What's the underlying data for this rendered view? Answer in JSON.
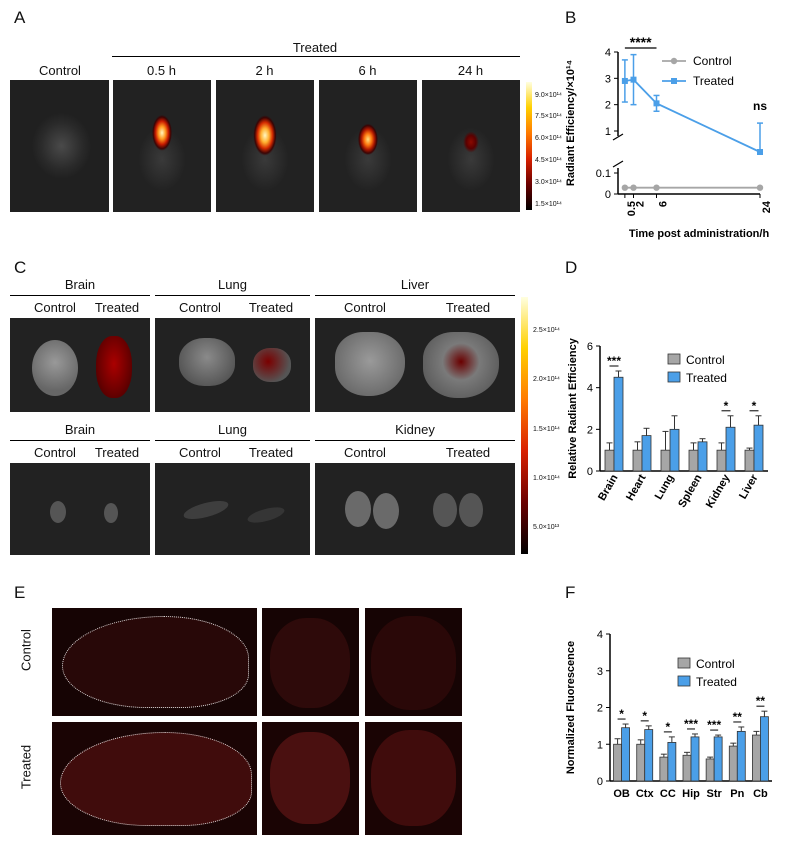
{
  "panels": {
    "A": "A",
    "B": "B",
    "C": "C",
    "D": "D",
    "E": "E",
    "F": "F"
  },
  "panelA": {
    "control_label": "Control",
    "treated_label": "Treated",
    "timepoints": [
      "0.5 h",
      "2 h",
      "6 h",
      "24 h"
    ],
    "colorbar_ticks": [
      "9.0×10¹⁴",
      "7.5×10¹⁴",
      "6.0×10¹⁴",
      "4.5×10¹⁴",
      "3.0×10¹⁴",
      "1.5×10¹⁴"
    ]
  },
  "panelC": {
    "top_groups": [
      "Brain",
      "Lung",
      "Liver"
    ],
    "bottom_groups": [
      "Brain",
      "Lung",
      "Kidney"
    ],
    "control_label": "Control",
    "treated_label": "Treated",
    "colorbar_ticks": [
      "2.5×10¹⁴",
      "2.0×10¹⁴",
      "1.5×10¹⁴",
      "1.0×10¹⁴",
      "5.0×10¹³"
    ]
  },
  "panelE": {
    "row_labels": [
      "Control",
      "Treated"
    ]
  },
  "chart_data": [
    {
      "panel": "B",
      "type": "line",
      "ylabel": "Radiant Efficiency/×10¹⁴",
      "xlabel": "Time post administration/h",
      "x": [
        0.5,
        2,
        6,
        24
      ],
      "xticks": [
        "0.5",
        "2",
        "6",
        "24"
      ],
      "yticks_upper": [
        "1",
        "2",
        "3",
        "4"
      ],
      "yticks_lower": [
        "0",
        "0.1"
      ],
      "y_axis_break": true,
      "series": [
        {
          "name": "Control",
          "color": "#a6a6a6",
          "values": [
            0.03,
            0.03,
            0.03,
            0.03
          ],
          "errors": [
            0.005,
            0.005,
            0.005,
            0.005
          ]
        },
        {
          "name": "Treated",
          "color": "#4b9fe8",
          "values": [
            2.9,
            2.95,
            2.05,
            0.95
          ],
          "errors": [
            0.8,
            0.95,
            0.3,
            0.35
          ]
        }
      ],
      "annotations": [
        {
          "text": "****"
        },
        {
          "text": "ns"
        }
      ],
      "legend": "top-right"
    },
    {
      "panel": "D",
      "type": "bar",
      "ylabel": "Relative Radiant Efficiency",
      "categories": [
        "Brain",
        "Heart",
        "Lung",
        "Spleen",
        "Kidney",
        "Liver"
      ],
      "ylim": [
        0,
        6
      ],
      "yticks": [
        "0",
        "2",
        "4",
        "6"
      ],
      "series": [
        {
          "name": "Control",
          "color": "#a6a6a6",
          "values": [
            1.0,
            1.0,
            1.0,
            1.0,
            1.0,
            1.0
          ],
          "errors": [
            0.35,
            0.4,
            0.9,
            0.35,
            0.35,
            0.1
          ]
        },
        {
          "name": "Treated",
          "color": "#4b9fe8",
          "values": [
            4.5,
            1.7,
            2.0,
            1.4,
            2.1,
            2.2
          ],
          "errors": [
            0.3,
            0.35,
            0.65,
            0.15,
            0.55,
            0.45
          ]
        }
      ],
      "significance": [
        "***",
        "",
        "",
        "",
        "*",
        "*"
      ],
      "legend": "top-right"
    },
    {
      "panel": "F",
      "type": "bar",
      "ylabel": "Normalized Fluorescence",
      "categories": [
        "OB",
        "Ctx",
        "CC",
        "Hip",
        "Str",
        "Pn",
        "Cb"
      ],
      "ylim": [
        0,
        4
      ],
      "yticks": [
        "0",
        "1",
        "2",
        "3",
        "4"
      ],
      "series": [
        {
          "name": "Control",
          "color": "#a6a6a6",
          "values": [
            1.0,
            1.0,
            0.65,
            0.7,
            0.6,
            0.95,
            1.25
          ],
          "errors": [
            0.15,
            0.12,
            0.08,
            0.08,
            0.05,
            0.08,
            0.1
          ]
        },
        {
          "name": "Treated",
          "color": "#4b9fe8",
          "values": [
            1.45,
            1.4,
            1.05,
            1.2,
            1.2,
            1.35,
            1.75
          ],
          "errors": [
            0.1,
            0.1,
            0.15,
            0.08,
            0.05,
            0.12,
            0.15
          ]
        }
      ],
      "significance": [
        "*",
        "*",
        "*",
        "***",
        "***",
        "**",
        "**"
      ],
      "legend": "top-right"
    }
  ]
}
